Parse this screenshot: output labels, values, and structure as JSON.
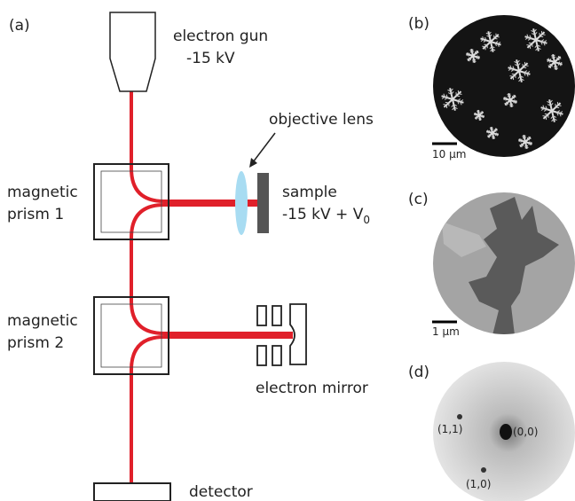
{
  "panel_a": {
    "label": "(a)",
    "electron_gun": {
      "name": "electron gun",
      "voltage": "-15 kV"
    },
    "objective_lens": "objective lens",
    "prism_1": [
      "magnetic",
      "prism 1"
    ],
    "sample": {
      "name": "sample",
      "voltage": "-15 kV + V",
      "voltage_subscript": "0"
    },
    "prism_2": [
      "magnetic",
      "prism 2"
    ],
    "electron_mirror": "electron mirror",
    "detector": "detector"
  },
  "panel_b": {
    "label": "(b)",
    "scale_bar": "10 μm"
  },
  "panel_c": {
    "label": "(c)",
    "scale_bar": "1 μm"
  },
  "panel_d": {
    "label": "(d)",
    "spots": [
      "(1,1)",
      "(0,0)",
      "(1,0)"
    ]
  }
}
